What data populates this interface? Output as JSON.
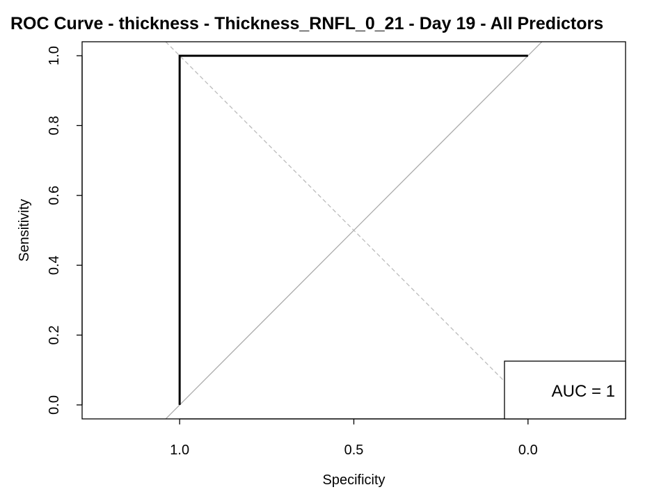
{
  "chart_data": {
    "type": "line",
    "title": "ROC Curve - thickness - Thickness_RNFL_0_21 - Day 19 - All Predictors",
    "xlabel": "Specificity",
    "ylabel": "Sensitivity",
    "x_reversed": true,
    "xlim": [
      1.28,
      -0.28
    ],
    "ylim": [
      -0.04,
      1.04
    ],
    "x_ticks": [
      1.0,
      0.5,
      0.0
    ],
    "x_tick_labels": [
      "1.0",
      "0.5",
      "0.0"
    ],
    "y_ticks": [
      0.0,
      0.2,
      0.4,
      0.6,
      0.8,
      1.0
    ],
    "y_tick_labels": [
      "0.0",
      "0.2",
      "0.4",
      "0.6",
      "0.8",
      "1.0"
    ],
    "series": [
      {
        "specificity": [
          1.0,
          1.0,
          0.0
        ],
        "sensitivity": [
          0.0,
          1.0,
          1.0
        ],
        "color": "#000000"
      }
    ],
    "reference_lines": [
      {
        "style": "solid",
        "color": "#aaaaaa",
        "intercept": 1,
        "slope": -1
      },
      {
        "style": "dashed",
        "color": "#bbbbbb",
        "intercept": 0,
        "slope": 1
      }
    ],
    "legend": {
      "text": "AUC = 1",
      "position": "bottom-right"
    },
    "grid": false
  }
}
